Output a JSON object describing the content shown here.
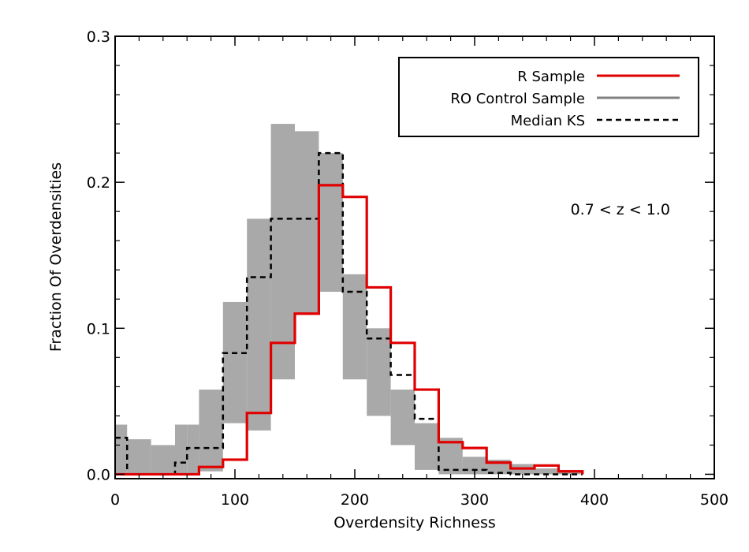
{
  "chart_data": {
    "type": "bar",
    "style": "step-histogram",
    "xlabel": "Overdensity Richness",
    "ylabel": "Fraction Of Overdensities",
    "xlim": [
      0,
      500
    ],
    "ylim": [
      -0.003,
      0.3
    ],
    "x_ticks": [
      0,
      100,
      200,
      300,
      400,
      500
    ],
    "x_tick_labels": [
      "0",
      "100",
      "200",
      "300",
      "400",
      "500"
    ],
    "y_ticks": [
      0.0,
      0.1,
      0.2,
      0.3
    ],
    "y_tick_labels": [
      "0.0",
      "0.1",
      "0.2",
      "0.3"
    ],
    "annotation": "0.7 < z < 1.0",
    "legend_position": "top-right",
    "legend": [
      {
        "label": "R Sample",
        "color": "#e00000",
        "dash": "solid"
      },
      {
        "label": "RO Control Sample",
        "color": "#808080",
        "dash": "solid"
      },
      {
        "label": "Median KS",
        "color": "#000000",
        "dash": "dashed"
      }
    ],
    "bin_edges": [
      0,
      10,
      30,
      50,
      60,
      70,
      90,
      110,
      130,
      150,
      170,
      190,
      210,
      230,
      250,
      270,
      290,
      310,
      330,
      350,
      370,
      390
    ],
    "series": [
      {
        "name": "R Sample",
        "color": "#e00000",
        "values": [
          0,
          0,
          0,
          0,
          0,
          0.005,
          0.01,
          0.042,
          0.09,
          0.11,
          0.198,
          0.19,
          0.128,
          0.09,
          0.058,
          0.022,
          0.018,
          0.008,
          0.004,
          0.006,
          0.002,
          0
        ]
      },
      {
        "name": "Median KS",
        "color": "#000000",
        "values": [
          0.025,
          0,
          0,
          0.008,
          0.018,
          0.018,
          0.083,
          0.135,
          0.175,
          0.175,
          0.22,
          0.125,
          0.093,
          0.068,
          0.038,
          0.003,
          0.003,
          0.001,
          0,
          0,
          0,
          0
        ]
      }
    ],
    "control_band": {
      "name": "RO Control Sample",
      "color": "#a9a9a9",
      "lower": [
        0,
        0,
        0,
        0,
        0,
        0.002,
        0.035,
        0.03,
        0.065,
        0.11,
        0.125,
        0.065,
        0.04,
        0.02,
        0.003,
        0,
        0,
        0,
        0,
        0,
        0
      ],
      "upper": [
        0.034,
        0.024,
        0.02,
        0.034,
        0.034,
        0.058,
        0.118,
        0.175,
        0.24,
        0.235,
        0.22,
        0.137,
        0.1,
        0.058,
        0.035,
        0.025,
        0.012,
        0.01,
        0.007,
        0.004,
        0.003
      ]
    }
  }
}
